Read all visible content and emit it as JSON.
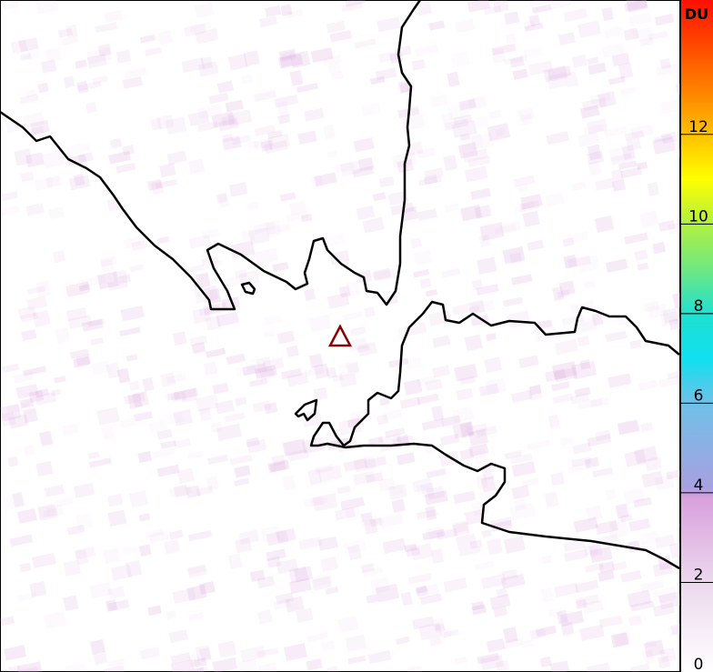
{
  "colorbar": {
    "unit": "DU",
    "range": [
      0,
      15
    ],
    "ticks": [
      "0",
      "2",
      "4",
      "6",
      "8",
      "10",
      "12"
    ],
    "stops": [
      {
        "v": 0,
        "c": "#ffffff"
      },
      {
        "v": 2,
        "c": "#ecd8ee"
      },
      {
        "v": 3.9,
        "c": "#d8a0dc"
      },
      {
        "v": 4.1,
        "c": "#a8a0e0"
      },
      {
        "v": 6,
        "c": "#70c0e8"
      },
      {
        "v": 7,
        "c": "#10e0f0"
      },
      {
        "v": 8,
        "c": "#20e0d0"
      },
      {
        "v": 9,
        "c": "#70e880"
      },
      {
        "v": 10,
        "c": "#b0f040"
      },
      {
        "v": 11,
        "c": "#ffff00"
      },
      {
        "v": 12,
        "c": "#ffc000"
      },
      {
        "v": 13,
        "c": "#ff8000"
      },
      {
        "v": 15,
        "c": "#ff1000"
      }
    ]
  },
  "map": {
    "coastline_color": "#000000",
    "marker": {
      "icon": "volcano-triangle-icon",
      "color": "#8b0000"
    },
    "background_noise_color": "#d8a0dc"
  }
}
